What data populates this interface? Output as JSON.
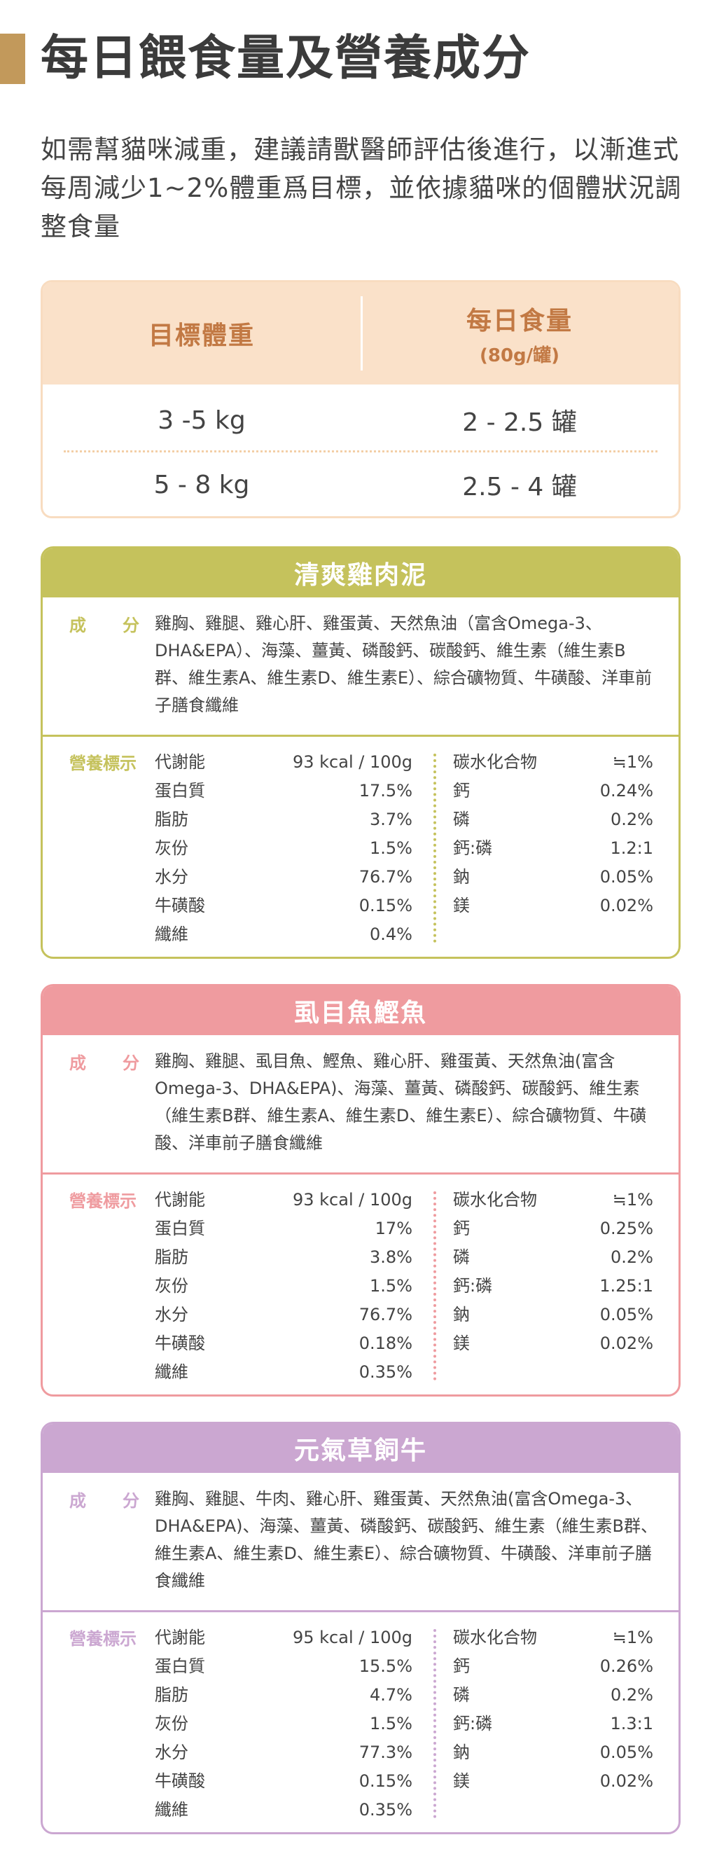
{
  "title": "每日餵食量及營養成分",
  "intro": "如需幫貓咪減重，建議請獸醫師評估後進行，以漸進式每周減少1~2%體重爲目標，並依據貓咪的個體狀況調整食量",
  "feeding": {
    "col_weight": "目標體重",
    "col_amount": "每日食量",
    "col_amount_sub": "(80g/罐)",
    "rows": [
      {
        "weight": "3 -5 kg",
        "amount": "2 - 2.5 罐"
      },
      {
        "weight": "5 - 8 kg",
        "amount": "2.5 - 4 罐"
      }
    ]
  },
  "labels": {
    "ingredients_1": "成",
    "ingredients_2": "分",
    "nutrition": "營養標示"
  },
  "products": [
    {
      "name": "清爽雞肉泥",
      "color": "#c5c25c",
      "ingredients": "雞胸、雞腿、雞心肝、雞蛋黃、天然魚油（富含Omega-3、DHA&EPA）、海藻、薑黃、磷酸鈣、碳酸鈣、維生素（維生素B群、維生素A、維生素D、維生素E）、綜合礦物質、牛磺酸、洋車前子膳食纖維",
      "left": [
        {
          "name": "代謝能",
          "value": "93 kcal / 100g"
        },
        {
          "name": "蛋白質",
          "value": "17.5%"
        },
        {
          "name": "脂肪",
          "value": "3.7%"
        },
        {
          "name": "灰份",
          "value": "1.5%"
        },
        {
          "name": "水分",
          "value": "76.7%"
        },
        {
          "name": "牛磺酸",
          "value": "0.15%"
        },
        {
          "name": "纖維",
          "value": "0.4%"
        }
      ],
      "right": [
        {
          "name": "碳水化合物",
          "value": "≒1%"
        },
        {
          "name": "鈣",
          "value": "0.24%"
        },
        {
          "name": "磷",
          "value": "0.2%"
        },
        {
          "name": "鈣:磷",
          "value": "1.2:1"
        },
        {
          "name": "鈉",
          "value": "0.05%"
        },
        {
          "name": "鎂",
          "value": "0.02%"
        }
      ]
    },
    {
      "name": "虱目魚鰹魚",
      "color": "#ef9b9f",
      "ingredients": "雞胸、雞腿、虱目魚、鰹魚、雞心肝、雞蛋黃、天然魚油(富含Omega-3、DHA&EPA)、海藻、薑黃、磷酸鈣、碳酸鈣、維生素（維生素B群、維生素A、維生素D、維生素E）、綜合礦物質、牛磺酸、洋車前子膳食纖維",
      "left": [
        {
          "name": "代謝能",
          "value": "93 kcal / 100g"
        },
        {
          "name": "蛋白質",
          "value": "17%"
        },
        {
          "name": "脂肪",
          "value": "3.8%"
        },
        {
          "name": "灰份",
          "value": "1.5%"
        },
        {
          "name": "水分",
          "value": "76.7%"
        },
        {
          "name": "牛磺酸",
          "value": "0.18%"
        },
        {
          "name": "纖維",
          "value": "0.35%"
        }
      ],
      "right": [
        {
          "name": "碳水化合物",
          "value": "≒1%"
        },
        {
          "name": "鈣",
          "value": "0.25%"
        },
        {
          "name": "磷",
          "value": "0.2%"
        },
        {
          "name": "鈣:磷",
          "value": "1.25:1"
        },
        {
          "name": "鈉",
          "value": "0.05%"
        },
        {
          "name": "鎂",
          "value": "0.02%"
        }
      ]
    },
    {
      "name": "元氣草飼牛",
      "color": "#cba7d1",
      "ingredients": "雞胸、雞腿、牛肉、雞心肝、雞蛋黃、天然魚油(富含Omega-3、DHA&EPA)、海藻、薑黃、磷酸鈣、碳酸鈣、維生素（維生素B群、維生素A、維生素D、維生素E）、綜合礦物質、牛磺酸、洋車前子膳食纖維",
      "left": [
        {
          "name": "代謝能",
          "value": "95 kcal / 100g"
        },
        {
          "name": "蛋白質",
          "value": "15.5%"
        },
        {
          "name": "脂肪",
          "value": "4.7%"
        },
        {
          "name": "灰份",
          "value": "1.5%"
        },
        {
          "name": "水分",
          "value": "77.3%"
        },
        {
          "name": "牛磺酸",
          "value": "0.15%"
        },
        {
          "name": "纖維",
          "value": "0.35%"
        }
      ],
      "right": [
        {
          "name": "碳水化合物",
          "value": "≒1%"
        },
        {
          "name": "鈣",
          "value": "0.26%"
        },
        {
          "name": "磷",
          "value": "0.2%"
        },
        {
          "name": "鈣:磷",
          "value": "1.3:1"
        },
        {
          "name": "鈉",
          "value": "0.05%"
        },
        {
          "name": "鎂",
          "value": "0.02%"
        }
      ]
    }
  ]
}
